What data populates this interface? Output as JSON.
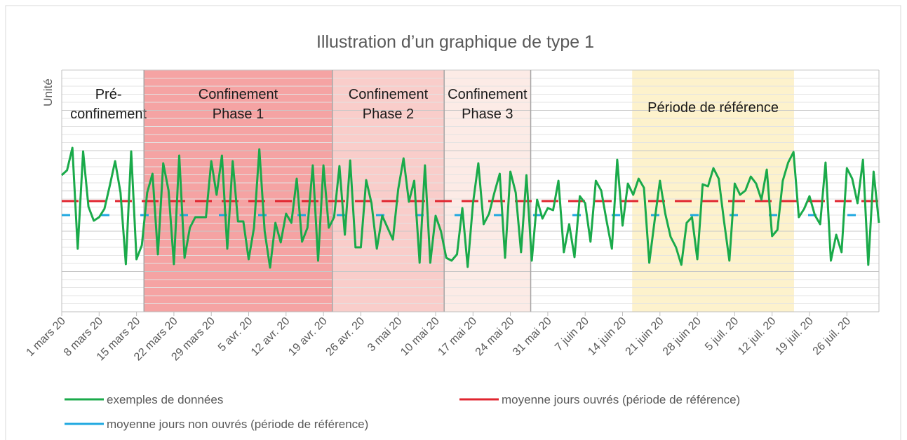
{
  "chart_data": {
    "type": "line",
    "title": "Illustration d’un graphique de type 1",
    "y_label": "Unité",
    "ylim": [
      0,
      345
    ],
    "yticks": [
      0,
      57.5,
      115,
      172.5,
      230,
      287.5,
      345
    ],
    "minor_grid_divisions": 5,
    "grid": true,
    "categories": [
      "1 mars 20",
      null,
      null,
      null,
      null,
      null,
      null,
      "8 mars 20",
      null,
      null,
      null,
      null,
      null,
      null,
      "15 mars 20",
      null,
      null,
      null,
      null,
      null,
      null,
      "22 mars 20",
      null,
      null,
      null,
      null,
      null,
      null,
      "29 mars 20",
      null,
      null,
      null,
      null,
      null,
      null,
      "5 avr. 20",
      null,
      null,
      null,
      null,
      null,
      null,
      "12 avr. 20",
      null,
      null,
      null,
      null,
      null,
      null,
      "19 avr. 20",
      null,
      null,
      null,
      null,
      null,
      null,
      "26 avr. 20",
      null,
      null,
      null,
      null,
      null,
      null,
      "3 mai 20",
      null,
      null,
      null,
      null,
      null,
      null,
      "10 mai 20",
      null,
      null,
      null,
      null,
      null,
      null,
      "17 mai 20",
      null,
      null,
      null,
      null,
      null,
      null,
      "24 mai 20",
      null,
      null,
      null,
      null,
      null,
      null,
      "31 mai 20",
      null,
      null,
      null,
      null,
      null,
      null,
      "7 juin 20",
      null,
      null,
      null,
      null,
      null,
      null,
      "14 juin 20",
      null,
      null,
      null,
      null,
      null,
      null,
      "21 juin 20",
      null,
      null,
      null,
      null,
      null,
      null,
      "28 juin 20",
      null,
      null,
      null,
      null,
      null,
      null,
      "5 juil. 20",
      null,
      null,
      null,
      null,
      null,
      null,
      "12 juil. 20",
      null,
      null,
      null,
      null,
      null,
      null,
      "19 juil. 20",
      null,
      null,
      null,
      null,
      null,
      null,
      "26 juil. 20",
      null,
      null,
      null,
      null,
      null,
      null
    ],
    "phases": [
      {
        "label": [
          "Pré-",
          "confinement"
        ],
        "start": 0,
        "end": 15.4,
        "color": "#ffffff"
      },
      {
        "label": [
          "Confinement",
          "Phase 1"
        ],
        "start": 15.4,
        "end": 50.66,
        "color": "#f5a3a3"
      },
      {
        "label": [
          "Confinement",
          "Phase 2"
        ],
        "start": 50.66,
        "end": 71.6,
        "color": "#f9cdca"
      },
      {
        "label": [
          "Confinement",
          "Phase 3"
        ],
        "start": 71.6,
        "end": 87.8,
        "color": "#fcebe6"
      },
      {
        "label": [
          "Période de référence"
        ],
        "start": 106.8,
        "end": 137.1,
        "color": "#fdf2cc"
      }
    ],
    "series": [
      {
        "name": "exemples de données",
        "color": "#1aaa4a",
        "values": [
          195,
          202,
          234,
          90,
          229,
          150,
          130,
          135,
          147,
          180,
          215,
          170,
          68,
          229,
          75,
          95,
          170,
          197,
          82,
          212,
          173,
          68,
          223,
          77,
          120,
          135,
          135,
          135,
          215,
          167,
          223,
          90,
          215,
          129,
          129,
          75,
          120,
          232,
          115,
          63,
          127,
          99,
          140,
          127,
          190,
          100,
          120,
          209,
          73,
          209,
          120,
          135,
          208,
          110,
          216,
          92,
          92,
          188,
          155,
          90,
          137,
          120,
          103,
          175,
          219,
          157,
          187,
          70,
          209,
          70,
          137,
          115,
          77,
          73,
          82,
          148,
          64,
          155,
          212,
          125,
          140,
          170,
          197,
          77,
          200,
          170,
          85,
          195,
          73,
          160,
          133,
          148,
          145,
          187,
          85,
          125,
          78,
          165,
          155,
          100,
          187,
          173,
          130,
          90,
          217,
          123,
          183,
          167,
          190,
          177,
          70,
          130,
          187,
          140,
          107,
          92,
          67,
          127,
          135,
          75,
          182,
          179,
          205,
          190,
          129,
          73,
          183,
          167,
          173,
          193,
          183,
          160,
          203,
          108,
          117,
          187,
          213,
          228,
          135,
          147,
          165,
          138,
          125,
          213,
          73,
          110,
          85,
          205,
          190,
          155,
          217,
          67,
          200,
          127
        ]
      }
    ],
    "reference_lines": [
      {
        "name": "moyenne jours ouvrés (période de référence)",
        "color": "#e0252f",
        "value": 158
      },
      {
        "name": "moyenne jours non ouvrés (période de référence)",
        "color": "#1fa8e0",
        "value": 138
      }
    ]
  }
}
